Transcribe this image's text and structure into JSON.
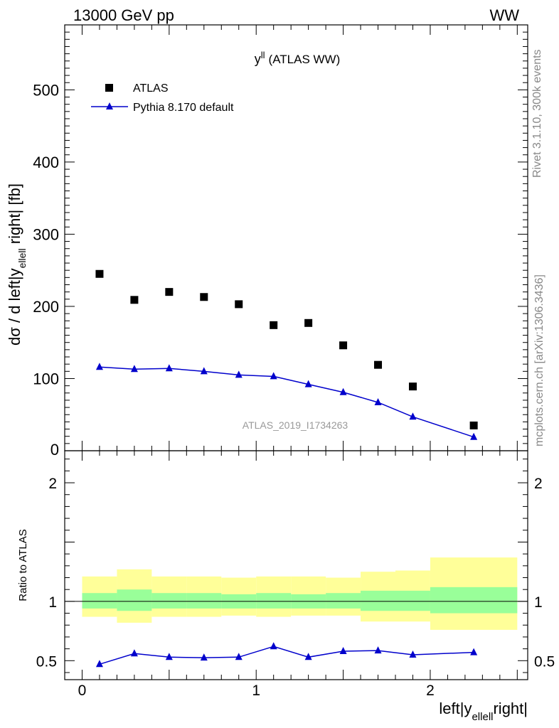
{
  "header": {
    "left": "13000 GeV pp",
    "right": "WW"
  },
  "side_text": {
    "top": "Rivet 3.1.10,  300k events",
    "bottom": "mcplots.cern.ch [arXiv:1306.3436]"
  },
  "watermark": "ATLAS_2019_I1734263",
  "chart_data": [
    {
      "type": "scatter",
      "title": "y^ll (ATLAS WW)",
      "ylabel": "dσ / d left|y_ellell right| [fb]",
      "xlim": [
        -0.1,
        2.56
      ],
      "ylim": [
        0,
        590
      ],
      "yticks": [
        100,
        200,
        300,
        400,
        500
      ],
      "ytick_labels": [
        "100",
        "200",
        "300",
        "400",
        "500"
      ],
      "bottom_tick_label": "0",
      "legend_position": "top-left",
      "series": [
        {
          "name": "ATLAS",
          "marker": "square",
          "color": "#000000",
          "x": [
            0.1,
            0.3,
            0.5,
            0.7,
            0.9,
            1.1,
            1.3,
            1.5,
            1.7,
            1.9,
            2.25
          ],
          "y": [
            245,
            209,
            220,
            213,
            203,
            174,
            177,
            146,
            119,
            89,
            35
          ]
        },
        {
          "name": "Pythia 8.170 default",
          "marker": "triangle",
          "color": "#0000cc",
          "x": [
            0.1,
            0.3,
            0.5,
            0.7,
            0.9,
            1.1,
            1.3,
            1.5,
            1.7,
            1.9,
            2.25
          ],
          "y": [
            116,
            113,
            114,
            110,
            105,
            103,
            92,
            81,
            67,
            47,
            19
          ]
        }
      ]
    },
    {
      "type": "line",
      "ylabel": "Ratio to ATLAS",
      "xlabel": "left|y_ellell right|",
      "xlim": [
        -0.1,
        2.56
      ],
      "ylim": [
        0.34,
        2.27
      ],
      "xticks": [
        0,
        1,
        2
      ],
      "xtick_labels": [
        "0",
        "1",
        "2"
      ],
      "yticks": [
        0.5,
        1,
        2
      ],
      "ytick_labels": [
        "0.5",
        "1",
        "2"
      ],
      "bands": {
        "bin_edges": [
          0.0,
          0.2,
          0.4,
          0.6,
          0.8,
          1.0,
          1.2,
          1.4,
          1.6,
          1.8,
          2.0,
          2.5
        ],
        "total_uncertainty": [
          [
            0.87,
            1.21
          ],
          [
            0.82,
            1.27
          ],
          [
            0.87,
            1.21
          ],
          [
            0.87,
            1.21
          ],
          [
            0.88,
            1.2
          ],
          [
            0.87,
            1.21
          ],
          [
            0.88,
            1.21
          ],
          [
            0.88,
            1.2
          ],
          [
            0.83,
            1.25
          ],
          [
            0.83,
            1.26
          ],
          [
            0.76,
            1.37
          ]
        ],
        "stat_uncertainty": [
          [
            0.94,
            1.07
          ],
          [
            0.92,
            1.1
          ],
          [
            0.94,
            1.07
          ],
          [
            0.94,
            1.07
          ],
          [
            0.94,
            1.06
          ],
          [
            0.94,
            1.07
          ],
          [
            0.94,
            1.06
          ],
          [
            0.94,
            1.07
          ],
          [
            0.92,
            1.09
          ],
          [
            0.92,
            1.09
          ],
          [
            0.9,
            1.12
          ]
        ],
        "total_color": "#ffff99",
        "stat_color": "#99ff99"
      },
      "series": [
        {
          "name": "Pythia 8.170 default",
          "color": "#0000cc",
          "x": [
            0.1,
            0.3,
            0.5,
            0.7,
            0.9,
            1.1,
            1.3,
            1.5,
            1.7,
            1.9,
            2.25
          ],
          "y": [
            0.47,
            0.56,
            0.53,
            0.525,
            0.53,
            0.62,
            0.53,
            0.58,
            0.585,
            0.55,
            0.57
          ],
          "err": [
            0.01,
            0.01,
            0.01,
            0.01,
            0.01,
            0.01,
            0.01,
            0.02,
            0.02,
            0.025,
            0.02
          ]
        }
      ]
    }
  ]
}
